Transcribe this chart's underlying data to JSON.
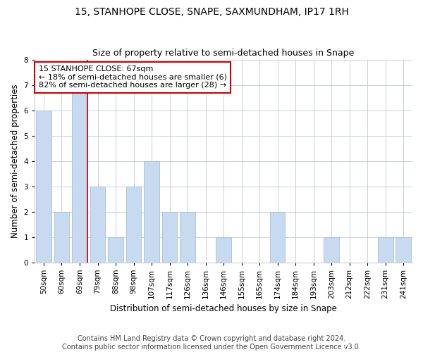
{
  "title": "15, STANHOPE CLOSE, SNAPE, SAXMUNDHAM, IP17 1RH",
  "subtitle": "Size of property relative to semi-detached houses in Snape",
  "xlabel": "Distribution of semi-detached houses by size in Snape",
  "ylabel": "Number of semi-detached properties",
  "categories": [
    "50sqm",
    "60sqm",
    "69sqm",
    "79sqm",
    "88sqm",
    "98sqm",
    "107sqm",
    "117sqm",
    "126sqm",
    "136sqm",
    "146sqm",
    "155sqm",
    "165sqm",
    "174sqm",
    "184sqm",
    "193sqm",
    "203sqm",
    "212sqm",
    "222sqm",
    "231sqm",
    "241sqm"
  ],
  "values": [
    6,
    2,
    7,
    3,
    1,
    3,
    4,
    2,
    2,
    0,
    1,
    0,
    0,
    2,
    0,
    0,
    1,
    0,
    0,
    1,
    1
  ],
  "bar_color": "#c8daf0",
  "bar_edge_color": "#9ab8d8",
  "vline_x_index": 2,
  "vline_color": "#cc0000",
  "annotation_text": "15 STANHOPE CLOSE: 67sqm\n← 18% of semi-detached houses are smaller (6)\n82% of semi-detached houses are larger (28) →",
  "annotation_box_color": "#ffffff",
  "annotation_box_edge": "#cc0000",
  "ylim": [
    0,
    8
  ],
  "yticks": [
    0,
    1,
    2,
    3,
    4,
    5,
    6,
    7,
    8
  ],
  "grid_color": "#c8d0dc",
  "footer_line1": "Contains HM Land Registry data © Crown copyright and database right 2024.",
  "footer_line2": "Contains public sector information licensed under the Open Government Licence v3.0.",
  "title_fontsize": 10,
  "subtitle_fontsize": 9,
  "axis_label_fontsize": 8.5,
  "tick_fontsize": 7.5,
  "annotation_fontsize": 8,
  "footer_fontsize": 7,
  "bg_color": "#ffffff"
}
